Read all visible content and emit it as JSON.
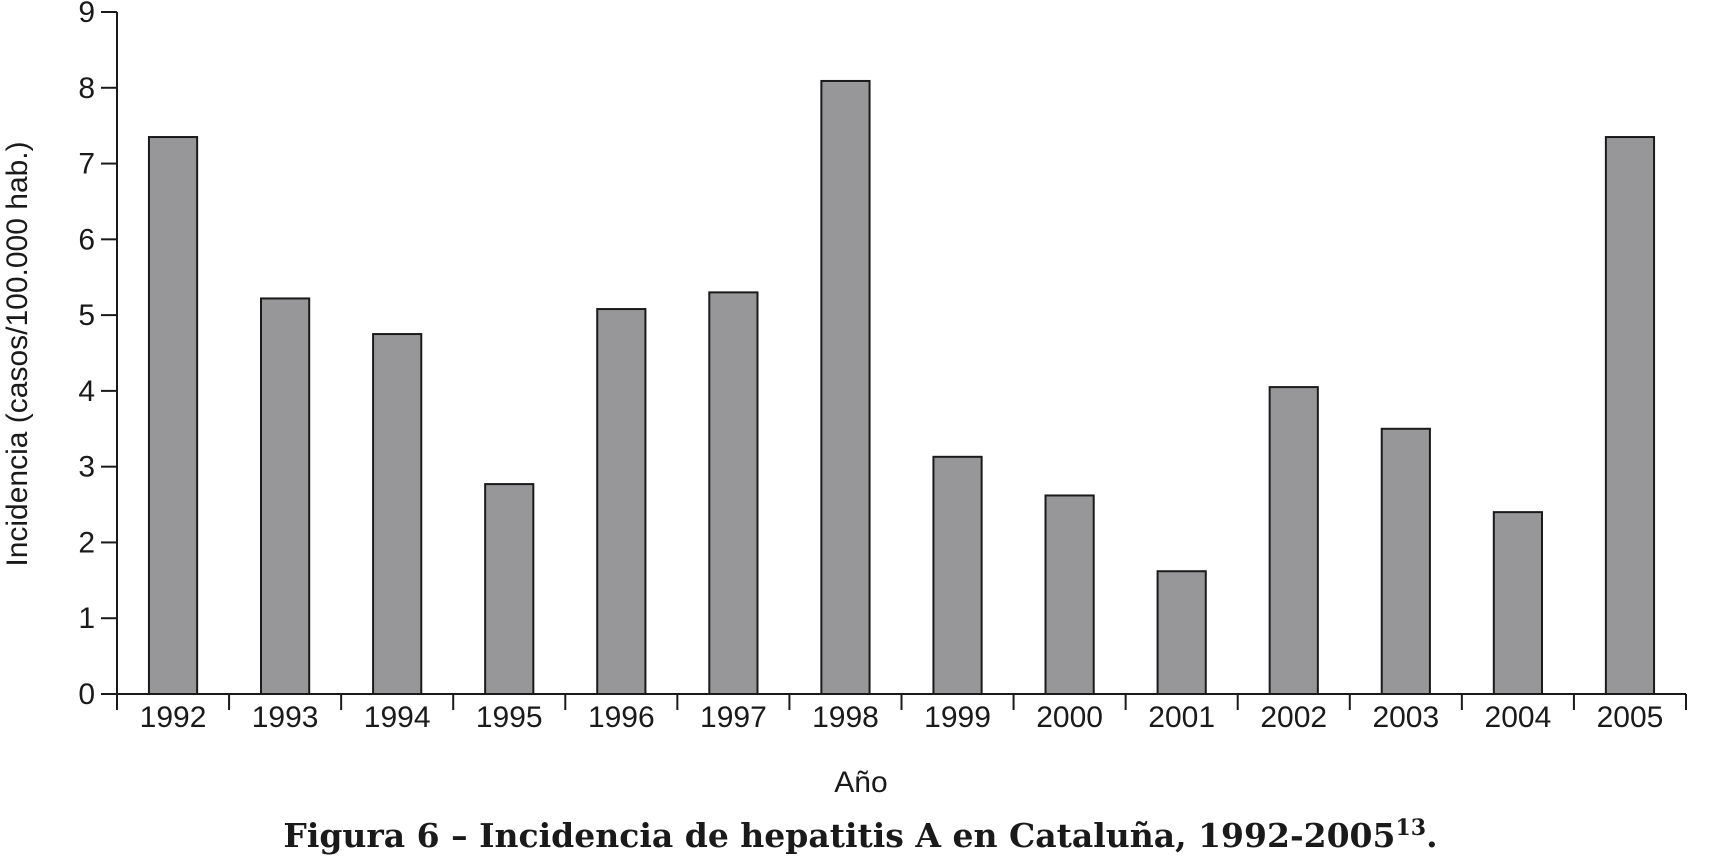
{
  "chart_data": {
    "type": "bar",
    "categories": [
      "1992",
      "1993",
      "1994",
      "1995",
      "1996",
      "1997",
      "1998",
      "1999",
      "2000",
      "2001",
      "2002",
      "2003",
      "2004",
      "2005"
    ],
    "values": [
      7.35,
      5.22,
      4.75,
      2.77,
      5.08,
      5.3,
      8.09,
      3.13,
      2.62,
      1.62,
      4.05,
      3.5,
      2.4,
      7.35
    ],
    "ylim": [
      0,
      9
    ],
    "yticks": [
      0,
      1,
      2,
      3,
      4,
      5,
      6,
      7,
      8,
      9
    ],
    "xlabel": "Año",
    "ylabel": "Incidencia (casos/100.000 hab.)",
    "grid": false,
    "bar_color": "#97979a",
    "bar_edge_color": "#1a1a1a"
  },
  "caption": {
    "text": "Figura 6 – Incidencia de hepatitis A en Cataluña, 1992-2005",
    "ref": "13",
    "end": "."
  }
}
